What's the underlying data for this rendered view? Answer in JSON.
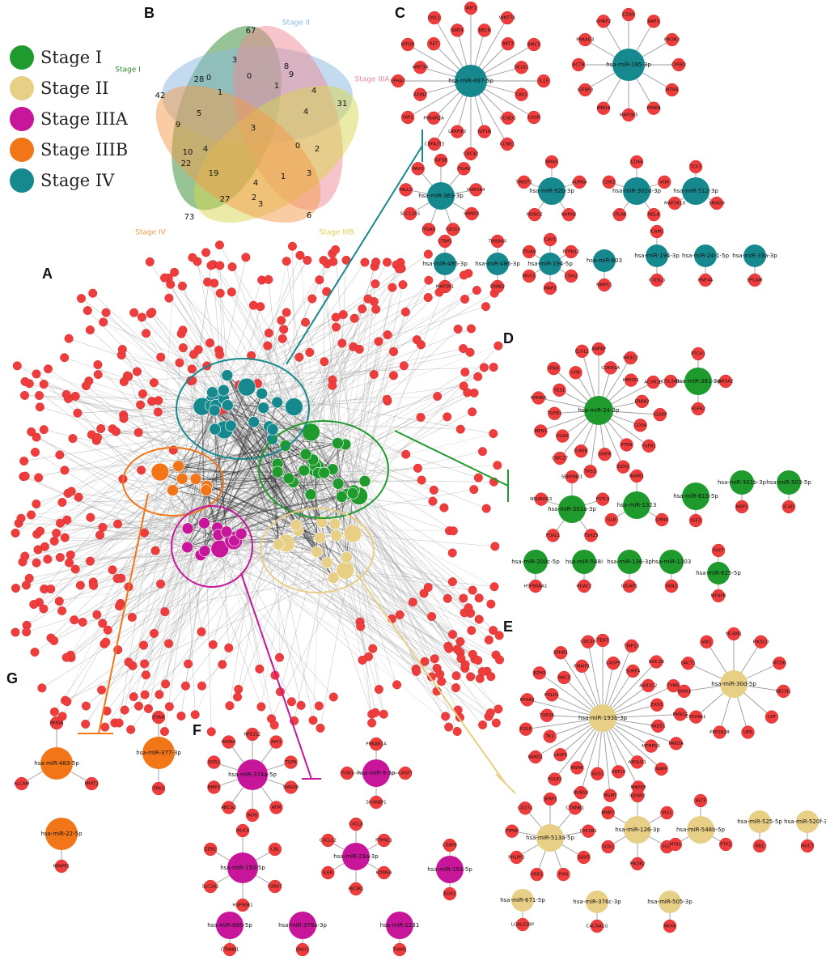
{
  "legend": [
    {
      "label": "Stage I",
      "color": "#1f9a2c"
    },
    {
      "label": "Stage II",
      "color": "#e8cf86"
    },
    {
      "label": "Stage IIIA",
      "color": "#c7169a"
    },
    {
      "label": "Stage IIIB",
      "color": "#f27517"
    },
    {
      "label": "Stage IV",
      "color": "#16898f"
    }
  ],
  "panels": {
    "a": "A",
    "b": "B",
    "c": "C",
    "d": "D",
    "e": "E",
    "f": "F",
    "g": "G"
  },
  "venn": {
    "sets": [
      {
        "label": "Stage I",
        "color": "#2d8a2d"
      },
      {
        "label": "Stage II",
        "color": "#8ab8e0"
      },
      {
        "label": "Stage IIIA",
        "color": "#ee8a96"
      },
      {
        "label": "Stage IIIB",
        "color": "#d7d64d"
      },
      {
        "label": "Stage IV",
        "color": "#f39a4a"
      }
    ],
    "numbers": [
      "67",
      "3",
      "8",
      "9",
      "28",
      "0",
      "0",
      "42",
      "1",
      "1",
      "4",
      "31",
      "9",
      "5",
      "3",
      "4",
      "10",
      "4",
      "0",
      "2",
      "22",
      "19",
      "4",
      "1",
      "3",
      "27",
      "2",
      "3",
      "73",
      "6"
    ]
  },
  "colors": {
    "target": "#ef3d3d",
    "target_stroke": "#c02828",
    "edge": "#9a9a9a",
    "dark_edge": "#333333"
  },
  "groups": [
    {
      "id": "C",
      "color": "#16898f",
      "items": [
        {
          "mir": "hsa-miR-497-5p",
          "targets": [
            "WIF1",
            "RECK",
            "WNT7A",
            "AKT3",
            "BIRC5",
            "DCLK1",
            "IL15",
            "CAV1",
            "CASR",
            "CCND3",
            "CCNE1",
            "IGF1R",
            "CDC42",
            "LRRFIP2",
            "CBFA2T3",
            "PRKAR2A",
            "YAP1",
            "AXIN2",
            "EPHA7",
            "WNT3A",
            "MTOR",
            "RET",
            "DVL1",
            "SIRT4"
          ]
        },
        {
          "mir": "hsa-miR-195-3p",
          "targets": [
            "CD40",
            "RAF1",
            "PIK3R3",
            "CPEB3",
            "MTRR",
            "PPARA",
            "MAP2K3",
            "MBD4",
            "IGFBP3",
            "ACTB",
            "PRKAG3",
            "UHRF2"
          ]
        },
        {
          "mir": "hsa-miR-363-3p",
          "targets": [
            "KIF5B",
            "ITGAV",
            "MAP2K4",
            "HAND1",
            "FZD10",
            "ITGA5",
            "SLC12A5",
            "PALLD",
            "PAX3"
          ]
        },
        {
          "mir": "hsa-miR-92b-3p",
          "targets": [
            "NRAS",
            "AURKA",
            "RHPN2",
            "NDRG2",
            "TWIST1"
          ]
        },
        {
          "mir": "hsa-miR-302d-3p",
          "targets": [
            "CD44",
            "VDR",
            "RELA",
            "CFLAR",
            "CDK2"
          ]
        },
        {
          "mir": "hsa-miR-512-3p",
          "targets": [
            "TCF3",
            "SMAD9",
            "MAP3K10"
          ]
        },
        {
          "mir": "hsa-miR-485-3p",
          "targets": [
            "CTBP1",
            "MAP2K1"
          ]
        },
        {
          "mir": "hsa-miR-486-3p",
          "targets": [
            "TMSB4X",
            "ERBB2"
          ]
        },
        {
          "mir": "hsa-miR-194-5p",
          "targets": [
            "CAV1",
            "PTPN12",
            "CDH2",
            "MAP2",
            "MUC5",
            "ITGA9"
          ]
        },
        {
          "mir": "hsa-miR-603",
          "targets": [
            "MMP11"
          ]
        },
        {
          "mir": "hsa-miR-194-3p",
          "targets": [
            "ICAM1",
            "ICOSLG"
          ]
        },
        {
          "mir": "hsa-miR-24-1-5p",
          "targets": [
            "HNF4A"
          ]
        },
        {
          "mir": "hsa-miR-33a-3p",
          "targets": [
            "EPCAM"
          ]
        }
      ]
    },
    {
      "id": "D",
      "color": "#1f9a2c",
      "items": [
        {
          "mir": "hsa-miR-24-3p",
          "targets": [
            "ANPEP",
            "CDKN1A",
            "NR3C2",
            "HMOX1",
            "ACVR1B",
            "ERBB2",
            "S100P",
            "CD34",
            "FGFR1",
            "PTEN",
            "EZH2",
            "DHFR",
            "TP53",
            "FURIN",
            "CWC27",
            "H2AX",
            "MEN1",
            "TGFB1",
            "NFKBIA",
            "YES1",
            "IFNG",
            "CHK",
            "ELGL1"
          ]
        },
        {
          "mir": "hsa-miR-381-3p",
          "targets": [
            "PTCH1",
            "NR5A2",
            "FGFR2",
            "COL3A1"
          ]
        },
        {
          "mir": "hsa-miR-301a-3p",
          "targets": [
            "SERPINE1",
            "FSTL3",
            "TSHZ3",
            "FOXL1",
            "NEUROG1"
          ]
        },
        {
          "mir": "hsa-miR-1323",
          "targets": [
            "RARB1",
            "LMNA",
            "GLB"
          ]
        },
        {
          "mir": "hsa-miR-615-5p",
          "targets": [
            "IGF2"
          ]
        },
        {
          "mir": "hsa-miR-301b-3p",
          "targets": [
            "NRP1"
          ]
        },
        {
          "mir": "hsa-miR-503-5p",
          "targets": [
            "ICAD"
          ]
        },
        {
          "mir": "hsa-miR-200c-5p",
          "targets": [
            "HSP90AA1"
          ]
        },
        {
          "mir": "hsa-miR-548i",
          "targets": [
            "HDAC2"
          ]
        },
        {
          "mir": "hsa-miR-136-3p",
          "targets": [
            "IQGAP1"
          ]
        },
        {
          "mir": "hsa-miR-1303",
          "targets": [
            "FAN1"
          ]
        },
        {
          "mir": "hsa-miR-625-5p",
          "targets": [
            "FHIT",
            "MTHFR"
          ]
        }
      ]
    },
    {
      "id": "E",
      "color": "#e8cf86",
      "items": [
        {
          "mir": "hsa-miR-193b-3p",
          "targets": [
            "TERT",
            "CASP9",
            "TRIP13",
            "SURF4",
            "NOC2B",
            "AKR1C2",
            "TYMS",
            "EXO1",
            "FANCG",
            "RAD51",
            "PRKDA",
            "MTHFD1",
            "AMPF",
            "APOLD1",
            "MAPK8",
            "KRT19",
            "MGMT",
            "SGO1",
            "BUB1B",
            "MSH6",
            "POLE2",
            "LASP1",
            "BARD1",
            "TK1",
            "POLE",
            "TOP2A",
            "EPHA2",
            "POLD1",
            "EZH2",
            "RAC2",
            "EPHB1",
            "PMAIP1",
            "CDC20"
          ]
        },
        {
          "mir": "hsa-miR-30d-5p",
          "targets": [
            "NCAM1",
            "PIK3CD",
            "MTDH",
            "BECN1",
            "CAT",
            "UFR",
            "PPP2R1B",
            "CYP24A1",
            "SNAI1",
            "DACT1",
            "JAK1"
          ]
        },
        {
          "mir": "hsa-miR-513a-5p",
          "targets": [
            "SFRP1",
            "CTNNB1",
            "CYP1B1",
            "SOX5",
            "PXN",
            "KRR1",
            "PHLPP2",
            "PTPRF",
            "CD274"
          ]
        },
        {
          "mir": "hsa-miR-126-3p",
          "targets": [
            "IGFBP2",
            "IRS1",
            "FGR",
            "PIK3R2",
            "SOX2",
            "MMP7"
          ]
        },
        {
          "mir": "hsa-miR-548b-5p",
          "targets": [
            "HLTF",
            "PTK2",
            "MTA1"
          ]
        },
        {
          "mir": "hsa-miR-525-5p",
          "targets": [
            "RB1"
          ]
        },
        {
          "mir": "hsa-miR-520f-3p",
          "targets": [
            "MUC7"
          ]
        },
        {
          "mir": "hsa-miR-671-5p",
          "targets": [
            "LGALS3BP"
          ]
        },
        {
          "mir": "hsa-miR-376c-3p",
          "targets": [
            "CACNA1G"
          ]
        },
        {
          "mir": "hsa-miR-505-3p",
          "targets": [
            "NKX6"
          ]
        }
      ]
    },
    {
      "id": "F",
      "color": "#c7169a",
      "items": [
        {
          "mir": "hsa-miR-374a-5p",
          "targets": [
            "NFE2L2",
            "AHI1",
            "TGFA",
            "SMAD6",
            "ATM",
            "NOG",
            "ABCG2",
            "BMP2",
            "SOS1",
            "HSPA4"
          ]
        },
        {
          "mir": "hsa-miR-9-3p",
          "targets": [
            "PRKAR1A",
            "CASP7",
            "SH3KBP1",
            "ITGB1"
          ]
        },
        {
          "mir": "hsa-miR-150-5p",
          "targets": [
            "MUC4",
            "CBL",
            "P2RX7",
            "HSP90B1",
            "SLC2A1",
            "ZEB1"
          ]
        },
        {
          "mir": "hsa-miR-23a-3p",
          "targets": [
            "CXCL8",
            "PTPN11",
            "KDM6A",
            "PIK3R1",
            "IL6R",
            "CXCL12"
          ]
        },
        {
          "mir": "hsa-miR-191-5p",
          "targets": [
            "CEBPB",
            "EGR1"
          ]
        },
        {
          "mir": "hsa-miR-885-5p",
          "targets": [
            "CTNNB1"
          ]
        },
        {
          "mir": "hsa-miR-378a-3p",
          "targets": [
            "ENO1"
          ]
        },
        {
          "mir": "hsa-miR-1231",
          "targets": [
            "TIAM1"
          ]
        }
      ]
    },
    {
      "id": "G",
      "color": "#f27517",
      "items": [
        {
          "mir": "hsa-miR-483-5p",
          "targets": [
            "RHOA",
            "PRRT2",
            "ALCAM"
          ]
        },
        {
          "mir": "hsa-miR-377-3p",
          "targets": [
            "EYA4",
            "TP63"
          ]
        },
        {
          "mir": "hsa-miR-22-5p",
          "targets": [
            "MINPP1"
          ]
        }
      ]
    }
  ]
}
